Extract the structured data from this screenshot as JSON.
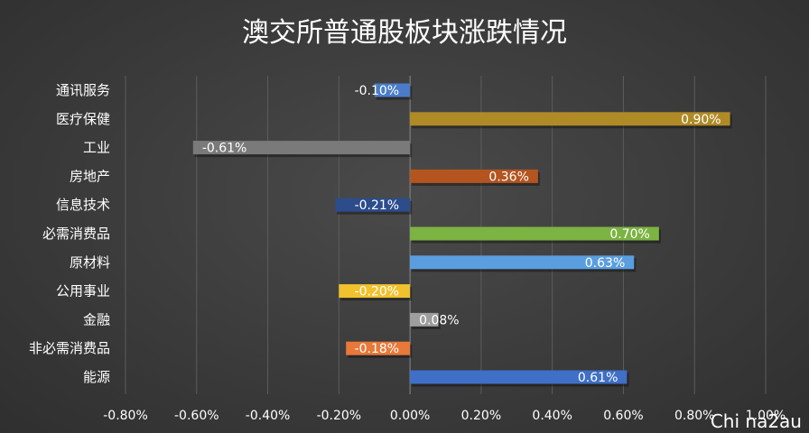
{
  "chart_data": {
    "type": "bar",
    "orientation": "horizontal",
    "title": "澳交所普通股板块涨跌情况",
    "categories": [
      "通讯服务",
      "医疗保健",
      "工业",
      "房地产",
      "信息技术",
      "必需消费品",
      "原材料",
      "公用事业",
      "金融",
      "非必需消费品",
      "能源"
    ],
    "values": [
      -0.1,
      0.9,
      -0.61,
      0.36,
      -0.21,
      0.7,
      0.63,
      -0.2,
      0.08,
      -0.18,
      0.61
    ],
    "value_labels": [
      "-0.10%",
      "0.90%",
      "-0.61%",
      "0.36%",
      "-0.21%",
      "0.70%",
      "0.63%",
      "-0.20%",
      "0.08%",
      "-0.18%",
      "0.61%"
    ],
    "colors": [
      "#4a7cc9",
      "#b08a26",
      "#7a7a7a",
      "#b4541f",
      "#2c4c8c",
      "#7cb342",
      "#5a9ee0",
      "#f2c12e",
      "#9e9e9e",
      "#e8793a",
      "#3f6fc6"
    ],
    "xlim": [
      -0.8,
      1.0
    ],
    "x_ticks": [
      "-0.80%",
      "-0.60%",
      "-0.40%",
      "-0.20%",
      "0.00%",
      "0.20%",
      "0.40%",
      "0.60%",
      "0.80%",
      "1.00%"
    ],
    "grid": true,
    "legend": "none"
  },
  "watermark": "Chi na2au"
}
